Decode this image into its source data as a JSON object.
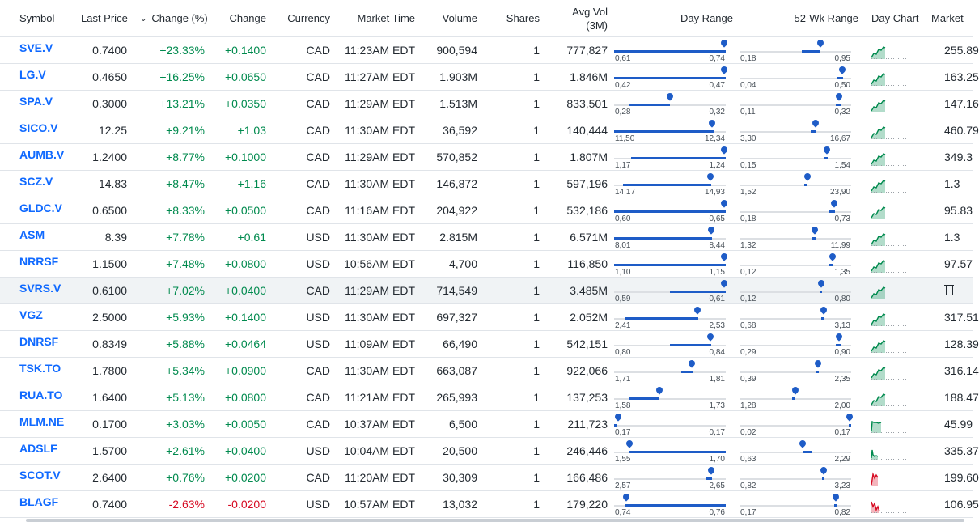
{
  "columns": {
    "symbol": "Symbol",
    "last_price": "Last Price",
    "change_pct": "Change (%)",
    "change": "Change",
    "currency": "Currency",
    "market_time": "Market Time",
    "volume": "Volume",
    "shares": "Shares",
    "avg_vol_line1": "Avg Vol",
    "avg_vol_line2": "(3M)",
    "day_range": "Day Range",
    "wk52_range": "52-Wk Range",
    "day_chart": "Day Chart",
    "market_cap": "Market"
  },
  "colors": {
    "positive": "#008a4e",
    "negative": "#d60a22",
    "link": "#0f69ff",
    "range_fill": "#1e5cc7"
  },
  "rows": [
    {
      "symbol": "SVE.V",
      "price": "0.7400",
      "chg_pct": "+23.33%",
      "chg": "+0.1400",
      "dir": "up",
      "currency": "CAD",
      "time": "11:23AM EDT",
      "volume": "900,594",
      "shares": "1",
      "avg_vol": "777,827",
      "day_lo": "0,61",
      "day_hi": "0,74",
      "day_pos": 1.0,
      "day_fill": [
        0.0,
        1.0
      ],
      "wk_lo": "0,18",
      "wk_hi": "0,95",
      "wk_pos": 0.73,
      "wk_fill": [
        0.56,
        0.73
      ],
      "mcap": "255.89",
      "trend": "up"
    },
    {
      "symbol": "LG.V",
      "price": "0.4650",
      "chg_pct": "+16.25%",
      "chg": "+0.0650",
      "dir": "up",
      "currency": "CAD",
      "time": "11:27AM EDT",
      "volume": "1.903M",
      "shares": "1",
      "avg_vol": "1.846M",
      "day_lo": "0,42",
      "day_hi": "0,47",
      "day_pos": 1.0,
      "day_fill": [
        0.0,
        1.0
      ],
      "wk_lo": "0,04",
      "wk_hi": "0,50",
      "wk_pos": 0.93,
      "wk_fill": [
        0.88,
        0.93
      ],
      "mcap": "163.25",
      "trend": "up"
    },
    {
      "symbol": "SPA.V",
      "price": "0.3000",
      "chg_pct": "+13.21%",
      "chg": "+0.0350",
      "dir": "up",
      "currency": "CAD",
      "time": "11:29AM EDT",
      "volume": "1.513M",
      "shares": "1",
      "avg_vol": "833,501",
      "day_lo": "0,28",
      "day_hi": "0,32",
      "day_pos": 0.5,
      "day_fill": [
        0.13,
        0.5
      ],
      "wk_lo": "0,11",
      "wk_hi": "0,32",
      "wk_pos": 0.9,
      "wk_fill": [
        0.86,
        0.9
      ],
      "mcap": "147.16",
      "trend": "up"
    },
    {
      "symbol": "SICO.V",
      "price": "12.25",
      "chg_pct": "+9.21%",
      "chg": "+1.03",
      "dir": "up",
      "currency": "CAD",
      "time": "11:30AM EDT",
      "volume": "36,592",
      "shares": "1",
      "avg_vol": "140,444",
      "day_lo": "11,50",
      "day_hi": "12,34",
      "day_pos": 0.89,
      "day_fill": [
        0.0,
        0.89
      ],
      "wk_lo": "3,30",
      "wk_hi": "16,67",
      "wk_pos": 0.69,
      "wk_fill": [
        0.64,
        0.69
      ],
      "mcap": "460.79",
      "trend": "up"
    },
    {
      "symbol": "AUMB.V",
      "price": "1.2400",
      "chg_pct": "+8.77%",
      "chg": "+0.1000",
      "dir": "up",
      "currency": "CAD",
      "time": "11:29AM EDT",
      "volume": "570,852",
      "shares": "1",
      "avg_vol": "1.807M",
      "day_lo": "1,17",
      "day_hi": "1,24",
      "day_pos": 1.0,
      "day_fill": [
        0.15,
        1.0
      ],
      "wk_lo": "0,15",
      "wk_hi": "1,54",
      "wk_pos": 0.79,
      "wk_fill": [
        0.76,
        0.79
      ],
      "mcap": "349.3",
      "trend": "up"
    },
    {
      "symbol": "SCZ.V",
      "price": "14.83",
      "chg_pct": "+8.47%",
      "chg": "+1.16",
      "dir": "up",
      "currency": "CAD",
      "time": "11:30AM EDT",
      "volume": "146,872",
      "shares": "1",
      "avg_vol": "597,196",
      "day_lo": "14,17",
      "day_hi": "14,93",
      "day_pos": 0.87,
      "day_fill": [
        0.08,
        0.87
      ],
      "wk_lo": "1,52",
      "wk_hi": "23,90",
      "wk_pos": 0.61,
      "wk_fill": [
        0.58,
        0.61
      ],
      "mcap": "1.3",
      "trend": "up"
    },
    {
      "symbol": "GLDC.V",
      "price": "0.6500",
      "chg_pct": "+8.33%",
      "chg": "+0.0500",
      "dir": "up",
      "currency": "CAD",
      "time": "11:16AM EDT",
      "volume": "204,922",
      "shares": "1",
      "avg_vol": "532,186",
      "day_lo": "0,60",
      "day_hi": "0,65",
      "day_pos": 1.0,
      "day_fill": [
        0.0,
        1.0
      ],
      "wk_lo": "0,18",
      "wk_hi": "0,73",
      "wk_pos": 0.86,
      "wk_fill": [
        0.8,
        0.86
      ],
      "mcap": "95.83",
      "trend": "up"
    },
    {
      "symbol": "ASM",
      "price": "8.39",
      "chg_pct": "+7.78%",
      "chg": "+0.61",
      "dir": "up",
      "currency": "USD",
      "time": "11:30AM EDT",
      "volume": "2.815M",
      "shares": "1",
      "avg_vol": "6.571M",
      "day_lo": "8,01",
      "day_hi": "8,44",
      "day_pos": 0.88,
      "day_fill": [
        0.0,
        0.88
      ],
      "wk_lo": "1,32",
      "wk_hi": "11,99",
      "wk_pos": 0.68,
      "wk_fill": [
        0.65,
        0.68
      ],
      "mcap": "1.3",
      "trend": "up"
    },
    {
      "symbol": "NRRSF",
      "price": "1.1500",
      "chg_pct": "+7.48%",
      "chg": "+0.0800",
      "dir": "up",
      "currency": "USD",
      "time": "10:56AM EDT",
      "volume": "4,700",
      "shares": "1",
      "avg_vol": "116,850",
      "day_lo": "1,10",
      "day_hi": "1,15",
      "day_pos": 1.0,
      "day_fill": [
        0.0,
        1.0
      ],
      "wk_lo": "0,12",
      "wk_hi": "1,35",
      "wk_pos": 0.84,
      "wk_fill": [
        0.8,
        0.84
      ],
      "mcap": "97.57",
      "trend": "up"
    },
    {
      "symbol": "SVRS.V",
      "price": "0.6100",
      "chg_pct": "+7.02%",
      "chg": "+0.0400",
      "dir": "up",
      "currency": "CAD",
      "time": "11:29AM EDT",
      "volume": "714,549",
      "shares": "1",
      "avg_vol": "3.485M",
      "day_lo": "0,59",
      "day_hi": "0,61",
      "day_pos": 1.0,
      "day_fill": [
        0.5,
        1.0
      ],
      "wk_lo": "0,12",
      "wk_hi": "0,80",
      "wk_pos": 0.74,
      "wk_fill": [
        0.72,
        0.74
      ],
      "mcap": "",
      "trend": "up",
      "highlight": true
    },
    {
      "symbol": "VGZ",
      "price": "2.5000",
      "chg_pct": "+5.93%",
      "chg": "+0.1400",
      "dir": "up",
      "currency": "USD",
      "time": "11:30AM EDT",
      "volume": "697,327",
      "shares": "1",
      "avg_vol": "2.052M",
      "day_lo": "2,41",
      "day_hi": "2,53",
      "day_pos": 0.75,
      "day_fill": [
        0.1,
        0.75
      ],
      "wk_lo": "0,68",
      "wk_hi": "3,13",
      "wk_pos": 0.76,
      "wk_fill": [
        0.73,
        0.76
      ],
      "mcap": "317.51",
      "trend": "up"
    },
    {
      "symbol": "DNRSF",
      "price": "0.8349",
      "chg_pct": "+5.88%",
      "chg": "+0.0464",
      "dir": "up",
      "currency": "USD",
      "time": "11:09AM EDT",
      "volume": "66,490",
      "shares": "1",
      "avg_vol": "542,151",
      "day_lo": "0,80",
      "day_hi": "0,84",
      "day_pos": 0.87,
      "day_fill": [
        0.5,
        0.87
      ],
      "wk_lo": "0,29",
      "wk_hi": "0,90",
      "wk_pos": 0.9,
      "wk_fill": [
        0.86,
        0.9
      ],
      "mcap": "128.39",
      "trend": "up"
    },
    {
      "symbol": "TSK.TO",
      "price": "1.7800",
      "chg_pct": "+5.34%",
      "chg": "+0.0900",
      "dir": "up",
      "currency": "CAD",
      "time": "11:30AM EDT",
      "volume": "663,087",
      "shares": "1",
      "avg_vol": "922,066",
      "day_lo": "1,71",
      "day_hi": "1,81",
      "day_pos": 0.7,
      "day_fill": [
        0.6,
        0.7
      ],
      "wk_lo": "0,39",
      "wk_hi": "2,35",
      "wk_pos": 0.71,
      "wk_fill": [
        0.69,
        0.71
      ],
      "mcap": "316.14",
      "trend": "up"
    },
    {
      "symbol": "RUA.TO",
      "price": "1.6400",
      "chg_pct": "+5.13%",
      "chg": "+0.0800",
      "dir": "up",
      "currency": "CAD",
      "time": "11:21AM EDT",
      "volume": "265,993",
      "shares": "1",
      "avg_vol": "137,253",
      "day_lo": "1,58",
      "day_hi": "1,73",
      "day_pos": 0.4,
      "day_fill": [
        0.14,
        0.4
      ],
      "wk_lo": "1,28",
      "wk_hi": "2,00",
      "wk_pos": 0.5,
      "wk_fill": [
        0.47,
        0.5
      ],
      "mcap": "188.47",
      "trend": "up"
    },
    {
      "symbol": "MLM.NE",
      "price": "0.1700",
      "chg_pct": "+3.03%",
      "chg": "+0.0050",
      "dir": "up",
      "currency": "CAD",
      "time": "10:37AM EDT",
      "volume": "6,500",
      "shares": "1",
      "avg_vol": "211,723",
      "day_lo": "0,17",
      "day_hi": "0,17",
      "day_pos": 0.02,
      "day_fill": [
        0.0,
        0.02
      ],
      "wk_lo": "0,02",
      "wk_hi": "0,17",
      "wk_pos": 1.0,
      "wk_fill": [
        0.98,
        1.0
      ],
      "mcap": "45.99",
      "trend": "flat"
    },
    {
      "symbol": "ADSLF",
      "price": "1.5700",
      "chg_pct": "+2.61%",
      "chg": "+0.0400",
      "dir": "up",
      "currency": "USD",
      "time": "10:04AM EDT",
      "volume": "20,500",
      "shares": "1",
      "avg_vol": "246,446",
      "day_lo": "1,55",
      "day_hi": "1,70",
      "day_pos": 0.13,
      "day_fill": [
        0.13,
        1.0
      ],
      "wk_lo": "0,63",
      "wk_hi": "2,29",
      "wk_pos": 0.57,
      "wk_fill": [
        0.57,
        0.64
      ],
      "mcap": "335.37",
      "trend": "spike"
    },
    {
      "symbol": "SCOT.V",
      "price": "2.6400",
      "chg_pct": "+0.76%",
      "chg": "+0.0200",
      "dir": "up",
      "currency": "CAD",
      "time": "11:20AM EDT",
      "volume": "30,309",
      "shares": "1",
      "avg_vol": "166,486",
      "day_lo": "2,57",
      "day_hi": "2,65",
      "day_pos": 0.88,
      "day_fill": [
        0.82,
        0.88
      ],
      "wk_lo": "0,82",
      "wk_hi": "3,23",
      "wk_pos": 0.76,
      "wk_fill": [
        0.74,
        0.76
      ],
      "mcap": "199.60",
      "trend": "mixed"
    },
    {
      "symbol": "BLAGF",
      "price": "0.7400",
      "chg_pct": "-2.63%",
      "chg": "-0.0200",
      "dir": "down",
      "currency": "USD",
      "time": "10:57AM EDT",
      "volume": "13,032",
      "shares": "1",
      "avg_vol": "179,220",
      "day_lo": "0,74",
      "day_hi": "0,76",
      "day_pos": 0.1,
      "day_fill": [
        0.1,
        1.0
      ],
      "wk_lo": "0,17",
      "wk_hi": "0,82",
      "wk_pos": 0.87,
      "wk_fill": [
        0.85,
        0.87
      ],
      "mcap": "106.95",
      "trend": "down"
    }
  ]
}
